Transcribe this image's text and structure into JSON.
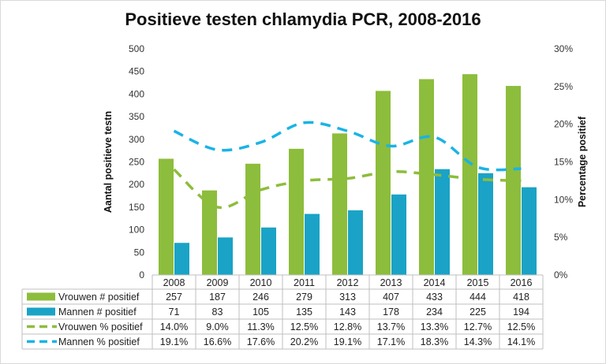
{
  "chart_data": {
    "type": "bar",
    "title": "Positieve testen chlamydia PCR, 2008-2016",
    "ylabel": "Aantal positieve testn",
    "y2label": "Percentage positief",
    "categories": [
      "2008",
      "2009",
      "2010",
      "2011",
      "2012",
      "2013",
      "2014",
      "2015",
      "2016"
    ],
    "ylim": [
      0,
      500
    ],
    "yticks": [
      "0",
      "50",
      "100",
      "150",
      "200",
      "250",
      "300",
      "350",
      "400",
      "450",
      "500"
    ],
    "y2lim": [
      0,
      30
    ],
    "y2ticks": [
      "0%",
      "5%",
      "10%",
      "15%",
      "20%",
      "25%",
      "30%"
    ],
    "series": [
      {
        "name": "Vrouwen # positief",
        "kind": "bar",
        "axis": "left",
        "color": "#8dbd3c",
        "values": [
          257,
          187,
          246,
          279,
          313,
          407,
          433,
          444,
          418
        ],
        "labels": [
          "257",
          "187",
          "246",
          "279",
          "313",
          "407",
          "433",
          "444",
          "418"
        ]
      },
      {
        "name": "Mannen # positief",
        "kind": "bar",
        "axis": "left",
        "color": "#1aa3c6",
        "values": [
          71,
          83,
          105,
          135,
          143,
          178,
          234,
          225,
          194
        ],
        "labels": [
          "71",
          "83",
          "105",
          "135",
          "143",
          "178",
          "234",
          "225",
          "194"
        ]
      },
      {
        "name": "Vrouwen % positief",
        "kind": "line",
        "axis": "right",
        "color": "#8dbd3c",
        "values": [
          14.0,
          9.0,
          11.3,
          12.5,
          12.8,
          13.7,
          13.3,
          12.7,
          12.5
        ],
        "labels": [
          "14.0%",
          "9.0%",
          "11.3%",
          "12.5%",
          "12.8%",
          "13.7%",
          "13.3%",
          "12.7%",
          "12.5%"
        ]
      },
      {
        "name": "Mannen % positief",
        "kind": "line",
        "axis": "right",
        "color": "#1ab3e6",
        "values": [
          19.1,
          16.6,
          17.6,
          20.2,
          19.1,
          17.1,
          18.3,
          14.3,
          14.1
        ],
        "labels": [
          "19.1%",
          "16.6%",
          "17.6%",
          "20.2%",
          "19.1%",
          "17.1%",
          "18.3%",
          "14.3%",
          "14.1%"
        ]
      }
    ]
  }
}
